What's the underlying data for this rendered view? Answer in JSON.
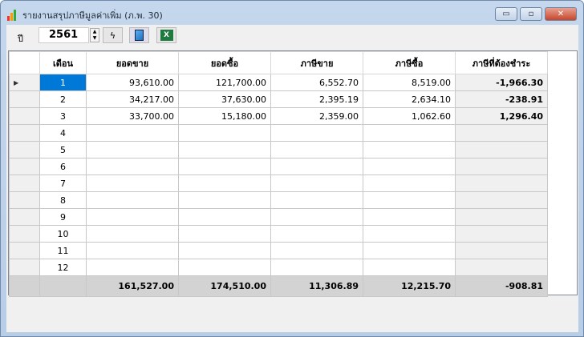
{
  "window": {
    "title": "รายงานสรุปภาษีมูลค่าเพิ่ม (ภ.พ. 30)",
    "minimize": "▭",
    "maximize": "▫",
    "close": "✕"
  },
  "toolbar": {
    "year_label": "ปี",
    "year_value": "2561",
    "run_icon": "lightning-icon",
    "copy_icon": "document-icon",
    "excel_icon": "excel-icon"
  },
  "table": {
    "headers": [
      "เดือน",
      "ยอดขาย",
      "ยอดซื้อ",
      "ภาษีขาย",
      "ภาษีซื้อ",
      "ภาษีที่ต้องชำระ"
    ],
    "rows": [
      [
        "1",
        "93,610.00",
        "121,700.00",
        "6,552.70",
        "8,519.00",
        "-1,966.30"
      ],
      [
        "2",
        "34,217.00",
        "37,630.00",
        "2,395.19",
        "2,634.10",
        "-238.91"
      ],
      [
        "3",
        "33,700.00",
        "15,180.00",
        "2,359.00",
        "1,062.60",
        "1,296.40"
      ],
      [
        "4",
        "",
        "",
        "",
        "",
        ""
      ],
      [
        "5",
        "",
        "",
        "",
        "",
        ""
      ],
      [
        "6",
        "",
        "",
        "",
        "",
        ""
      ],
      [
        "7",
        "",
        "",
        "",
        "",
        ""
      ],
      [
        "8",
        "",
        "",
        "",
        "",
        ""
      ],
      [
        "9",
        "",
        "",
        "",
        "",
        ""
      ],
      [
        "10",
        "",
        "",
        "",
        "",
        ""
      ],
      [
        "11",
        "",
        "",
        "",
        "",
        ""
      ],
      [
        "12",
        "",
        "",
        "",
        "",
        ""
      ]
    ],
    "selected_row": 0,
    "totals": [
      "",
      "161,527.00",
      "174,510.00",
      "11,306.89",
      "12,215.70",
      "-908.81"
    ]
  }
}
